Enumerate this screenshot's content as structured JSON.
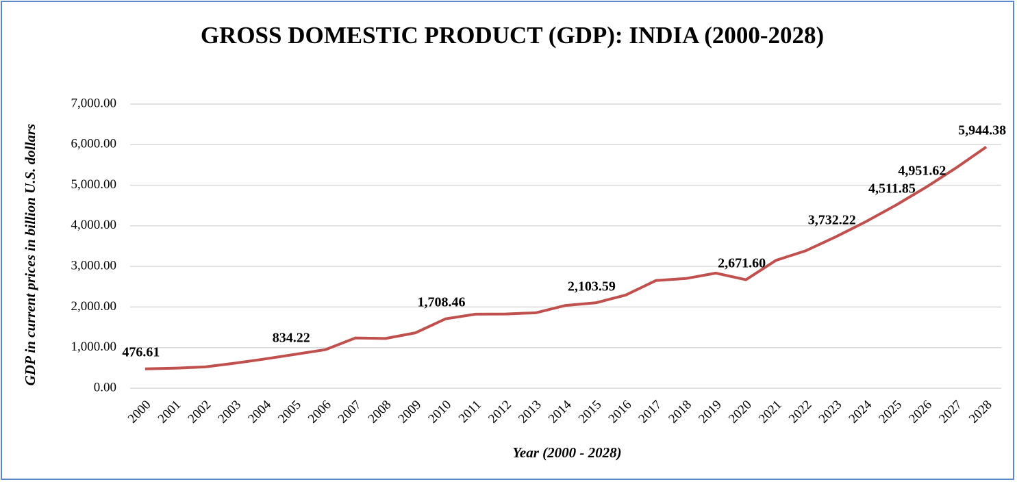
{
  "chart_data": {
    "type": "line",
    "title": "GROSS DOMESTIC PRODUCT (GDP): INDIA (2000-2028)",
    "x_label": "Year (2000 - 2028)",
    "y_label": "GDP in current prices in billion U.S. dollars",
    "categories": [
      "2000",
      "2001",
      "2002",
      "2003",
      "2004",
      "2005",
      "2006",
      "2007",
      "2008",
      "2009",
      "2010",
      "2011",
      "2012",
      "2013",
      "2014",
      "2015",
      "2016",
      "2017",
      "2018",
      "2019",
      "2020",
      "2021",
      "2022",
      "2023",
      "2024",
      "2025",
      "2026",
      "2027",
      "2028"
    ],
    "series": [
      {
        "name": "GDP",
        "color": "#c0504d",
        "values": [
          476.61,
          494,
          524,
          618,
          722,
          834.22,
          949,
          1238,
          1224,
          1365,
          1708.46,
          1823,
          1828,
          1857,
          2039,
          2103.59,
          2295,
          2652,
          2702,
          2836,
          2671.6,
          3150,
          3389,
          3732.22,
          4105,
          4511.85,
          4951.62,
          5430,
          5944.38
        ],
        "value_labels": [
          "476.61",
          null,
          null,
          null,
          null,
          "834.22",
          null,
          null,
          null,
          null,
          "1,708.46",
          null,
          null,
          null,
          null,
          "2,103.59",
          null,
          null,
          null,
          null,
          "2,671.60",
          null,
          null,
          "3,732.22",
          null,
          "4,511.85",
          "4,951.62",
          null,
          "5,944.38"
        ]
      }
    ],
    "ylim": [
      0,
      7000
    ],
    "yticks": [
      {
        "value": 0,
        "label": "0.00"
      },
      {
        "value": 1000,
        "label": "1,000.00"
      },
      {
        "value": 2000,
        "label": "2,000.00"
      },
      {
        "value": 3000,
        "label": "3,000.00"
      },
      {
        "value": 4000,
        "label": "4,000.00"
      },
      {
        "value": 5000,
        "label": "5,000.00"
      },
      {
        "value": 6000,
        "label": "6,000.00"
      },
      {
        "value": 7000,
        "label": "7,000.00"
      }
    ],
    "grid": true
  }
}
